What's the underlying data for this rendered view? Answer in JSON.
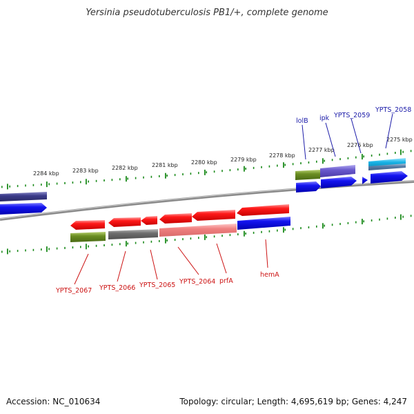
{
  "title": "Yersinia pseudotuberculosis PB1/+, complete genome",
  "footer": {
    "accession": "Accession: NC_010634",
    "summary": "Topology: circular; Length: 4,695,619 bp; Genes: 4,247"
  },
  "ticks": [
    "2284 kbp",
    "2283 kbp",
    "2282 kbp",
    "2281 kbp",
    "2280 kbp",
    "2279 kbp",
    "2278 kbp",
    "2277 kbp",
    "2276 kbp",
    "2275 kbp"
  ],
  "labels_top": [
    "lolB",
    "ipk",
    "YPTS_2059",
    "YPTS_2058"
  ],
  "labels_bottom": [
    "YPTS_2067",
    "YPTS_2066",
    "YPTS_2065",
    "YPTS_2064",
    "prfA",
    "hemA"
  ],
  "colors": {
    "cds_red": "#ff1111",
    "cds_pink": "#f07a7a",
    "cds_blue": "#1010ee",
    "cds_purple": "#6a5acd",
    "cds_navy": "#3b3b8a",
    "cds_olive": "#6b8e23",
    "cds_gray": "#6e6e6e",
    "cds_cyan": "#19b3e6",
    "ruler_green": "#1a8a1a",
    "backbone_gray": "#7a7a7a",
    "label_blue": "#1a1aa8",
    "label_red": "#cc1111"
  }
}
